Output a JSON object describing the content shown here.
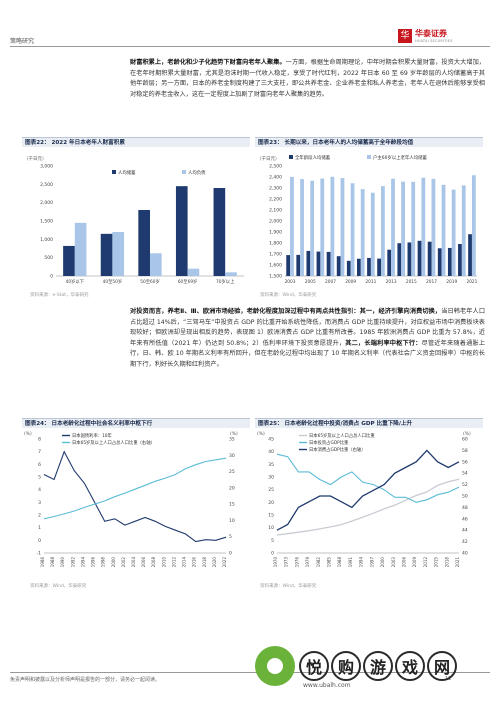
{
  "header": {
    "section": "策略研究",
    "brand_cn": "华泰证券",
    "brand_en": "HUATAI SECURITIES"
  },
  "para1": {
    "bold": "财富积累上，老龄化和少子化趋势下财富向老年人聚集。",
    "text": "一方面，根据生命周期理论，中年时期会积累大量财富，投资大大增加，在老年时期积累大量财富，尤其是泡沫时期一代收入稳定，享受了时代红利，2022 年日本 60 至 69 岁年龄层的人均储蓄高于其他年龄层；另一方面，日本的养老金制度构建了三大支柱，即公共养老金、企业养老金和私人养老金，老年人在退休后能够享受相对稳定的养老金收入，这在一定程度上加剧了财富向老年人聚集的趋势。"
  },
  "fig22": {
    "title": "图表22：  2022 年日本老年人财富积累",
    "unit": "（千日元）",
    "source": "资料来源：e-Stat，华泰研究",
    "legend": [
      "人均储蓄",
      "人均负债"
    ],
    "colors": [
      "#1f3a6e",
      "#a9c6e8"
    ],
    "chart_data": {
      "type": "bar",
      "categories": [
        "40岁以下",
        "40至50岁",
        "50至60岁",
        "60至69岁",
        "70岁以上"
      ],
      "series": [
        {
          "name": "人均储蓄",
          "values": [
            820,
            1150,
            1800,
            2450,
            2400
          ]
        },
        {
          "name": "人均负债",
          "values": [
            1450,
            1200,
            620,
            200,
            100
          ]
        }
      ],
      "ylim": [
        0,
        3000
      ],
      "yticks": [
        "0",
        "500",
        "1,000",
        "1,500",
        "2,000",
        "2,500",
        "3,000"
      ]
    }
  },
  "fig23": {
    "title": "图表23：  长期以来，日本老年人的人均储蓄高于全年龄段均值",
    "unit": "（千日元）",
    "source": "资料来源：Wind，华泰研究",
    "legend": [
      "全年龄段人均储蓄",
      "户主60岁以上老年人均储蓄"
    ],
    "colors": [
      "#1f3a6e",
      "#a9c6e8"
    ],
    "chart_data": {
      "type": "bar",
      "categories": [
        "2003",
        "2004",
        "2005",
        "2006",
        "2007",
        "2008",
        "2009",
        "2010",
        "2011",
        "2012",
        "2013",
        "2014",
        "2015",
        "2016",
        "2017",
        "2018",
        "2019",
        "2020",
        "2021"
      ],
      "xtick_labels": [
        "2003",
        "2005",
        "2007",
        "2009",
        "2011",
        "2013",
        "2015",
        "2017",
        "2019",
        "2021"
      ],
      "series": [
        {
          "name": "全年龄段人均储蓄",
          "values": [
            1690,
            1692,
            1728,
            1722,
            1719,
            1680,
            1638,
            1657,
            1664,
            1658,
            1739,
            1798,
            1805,
            1820,
            1812,
            1752,
            1755,
            1791,
            1880
          ]
        },
        {
          "name": "户主60岁以上老年人均储蓄",
          "values": [
            2401,
            2381,
            2366,
            2386,
            2402,
            2390,
            2343,
            2290,
            2257,
            2317,
            2384,
            2358,
            2356,
            2393,
            2383,
            2329,
            2285,
            2324,
            2416
          ]
        }
      ],
      "ylim": [
        1500,
        2500
      ],
      "yticks": [
        "1,500",
        "1,600",
        "1,700",
        "1,800",
        "1,900",
        "2,000",
        "2,100",
        "2,200",
        "2,300",
        "2,400",
        "2,500"
      ]
    }
  },
  "para2": {
    "b1": "对投资而言，养老Ⅱ、Ⅲ、欧洲市场经验，老龄化程度加深过程中有两点共性指引：其一，经济引擎向消费切换，",
    "t1": "当日韩老年人口占比超过 14%后，“三驾马车”中投资占 GDP 的比重开始系统性降低，而消费占 GDP 比重持续提升，对应权益市场中消费板块表现较好；但欧洲却呈现出相反的趋势，表现图 1）欧洲消费占 GDP 比重有所改善。1985 年欧洲消费占 GDP 比重为 57.8%，近年来有所低值（2021 年）仍达到 50.8%；2）低利率环境下投资意愿提升，",
    "b2": "其二，长端利率中枢下行：",
    "t2": "尽管近年来随着通胀上行，日、韩、欧 10 年期名义利率有所回升，但在老龄化过程中均出现了 10 年期名义利率（代表社会广义资金回报率）中枢的长期下行，利好长久期和红利资产。"
  },
  "fig24": {
    "title": "图表24：  日本老龄化过程中社会名义利率中枢下行",
    "left_unit": "(%)",
    "right_unit": "(%)",
    "source": "资料来源：Wind，华泰研究",
    "legend": [
      "日本国债利率：10年",
      "日本65岁及以上人口占总人口比重（右轴）"
    ],
    "colors": [
      "#1f3a6e",
      "#5bbcd6"
    ],
    "chart_data": {
      "type": "line",
      "x": [
        1986,
        1988,
        1990,
        1992,
        1994,
        1996,
        1998,
        2000,
        2002,
        2004,
        2006,
        2008,
        2010,
        2012,
        2014,
        2016,
        2018,
        2020,
        2022
      ],
      "xtick_labels": [
        "1986",
        "1988",
        "1990",
        "1992",
        "1994",
        "1996",
        "1998",
        "2000",
        "2002",
        "2004",
        "2006",
        "2008",
        "2010",
        "2012",
        "2014",
        "2016",
        "2018",
        "2020",
        "2022"
      ],
      "series": [
        {
          "name": "日本国债利率：10年",
          "axis": "left",
          "values": [
            5.2,
            4.8,
            7.0,
            5.5,
            4.5,
            3.0,
            1.5,
            1.7,
            1.2,
            1.5,
            1.8,
            1.5,
            1.1,
            0.8,
            0.5,
            -0.1,
            0.05,
            0.0,
            0.25
          ]
        },
        {
          "name": "日本65岁及以上人口占总人口比重",
          "axis": "right",
          "values": [
            10.5,
            11.2,
            12.0,
            12.9,
            14.0,
            15.0,
            16.0,
            17.3,
            18.4,
            19.6,
            20.8,
            22.0,
            23.0,
            24.1,
            25.9,
            27.1,
            28.1,
            28.6,
            29.1
          ]
        }
      ],
      "ylim_left": [
        -1,
        8
      ],
      "ylim_right": [
        0,
        35
      ],
      "yticks_left": [
        "-1",
        "0",
        "1",
        "2",
        "3",
        "4",
        "5",
        "6",
        "7",
        "8"
      ],
      "yticks_right": [
        "0",
        "5",
        "10",
        "15",
        "20",
        "25",
        "30",
        "35"
      ]
    }
  },
  "fig25": {
    "title": "图表25：  日本老龄化过程中投资/消费占 GDP 比重下降/上升",
    "left_unit": "(%)",
    "right_unit": "(%)",
    "source": "资料来源：Wind，华泰研究",
    "legend": [
      "日本65岁及以上人口占总人口比重",
      "日本投资占GDP比重",
      "日本消费占GDP比重（右轴）"
    ],
    "colors": [
      "#c9ccd2",
      "#5bbcd6",
      "#1f3a6e"
    ],
    "chart_data": {
      "type": "line",
      "x": [
        1970,
        1973,
        1976,
        1979,
        1982,
        1985,
        1988,
        1991,
        1994,
        1997,
        2000,
        2003,
        2006,
        2009,
        2012,
        2015,
        2018,
        2021
      ],
      "xtick_labels": [
        "1970",
        "1973",
        "1976",
        "1979",
        "1982",
        "1985",
        "1988",
        "1991",
        "1994",
        "1997",
        "2000",
        "2003",
        "2006",
        "2009",
        "2012",
        "2015",
        "2018",
        "2021"
      ],
      "series": [
        {
          "name": "日本65岁及以上人口占总人口比重",
          "axis": "left",
          "values": [
            7.1,
            7.6,
            8.2,
            8.8,
            9.5,
            10.3,
            11.2,
            12.6,
            14.1,
            15.7,
            17.4,
            18.9,
            20.8,
            22.7,
            24.1,
            26.7,
            28.1,
            29.1
          ]
        },
        {
          "name": "日本投资占GDP比重",
          "axis": "left",
          "values": [
            39,
            38,
            32,
            32,
            29,
            27,
            30,
            32,
            28,
            27,
            25,
            22,
            22,
            20,
            21,
            23,
            24,
            26
          ]
        },
        {
          "name": "日本消费占GDP比重",
          "axis": "right",
          "values": [
            44,
            45,
            48,
            49,
            50,
            50,
            49,
            48,
            50,
            51,
            52,
            54,
            55,
            56,
            58,
            56,
            55,
            56
          ]
        }
      ],
      "ylim_left": [
        0,
        45
      ],
      "ylim_right": [
        40,
        60
      ],
      "yticks_left": [
        "0",
        "5",
        "10",
        "15",
        "20",
        "25",
        "30",
        "35",
        "40",
        "45"
      ],
      "yticks_right": [
        "40",
        "42",
        "44",
        "46",
        "48",
        "50",
        "52",
        "54",
        "56",
        "58",
        "60"
      ]
    }
  },
  "footer": {
    "disclaimer": "免责声明和披露以及分析师声明是报告的一部分，请务必一起阅读。",
    "page": "11"
  },
  "watermark": {
    "chars": [
      "悦",
      "购",
      "游",
      "戏",
      "网"
    ],
    "url": "www.ubalh.com"
  }
}
